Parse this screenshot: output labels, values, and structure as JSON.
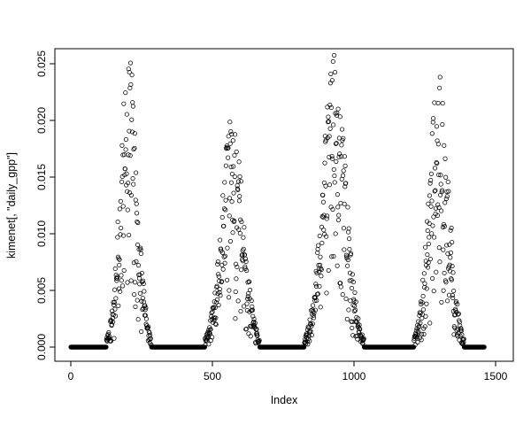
{
  "chart_data": {
    "type": "scatter",
    "title": "",
    "xlabel": "Index",
    "ylabel": "kimenet[, \"daily_gpp\"]",
    "xlim": [
      0,
      1500
    ],
    "ylim": [
      0,
      0.025
    ],
    "xticks": {
      "values": [
        0,
        500,
        1000,
        1500
      ],
      "labels": [
        "0",
        "500",
        "1000",
        "1500"
      ]
    },
    "yticks": {
      "values": [
        0,
        0.005,
        0.01,
        0.015,
        0.02,
        0.025
      ],
      "labels": [
        "0.000",
        "0.005",
        "0.010",
        "0.015",
        "0.020",
        "0.025"
      ]
    },
    "grid": false,
    "legend": false,
    "marker": {
      "shape": "open-circle",
      "radius": 2.2,
      "color": "#000000"
    },
    "n_points": 1461,
    "x_range": [
      0,
      1460
    ],
    "series_spec": {
      "description": "Daily GPP time series: four seasonal growing-season peaks separated by zero-valued winter periods",
      "baseline": 0,
      "zero_threshold": 0.0008,
      "noise_seed": 42,
      "peaks": [
        {
          "center": 205,
          "sigma": 30,
          "amplitude": 0.0258
        },
        {
          "center": 570,
          "sigma": 38,
          "amplitude": 0.0206
        },
        {
          "center": 930,
          "sigma": 40,
          "amplitude": 0.0258
        },
        {
          "center": 1300,
          "sigma": 34,
          "amplitude": 0.0246
        }
      ]
    },
    "colors": {
      "background": "#ffffff",
      "foreground": "#000000"
    }
  }
}
